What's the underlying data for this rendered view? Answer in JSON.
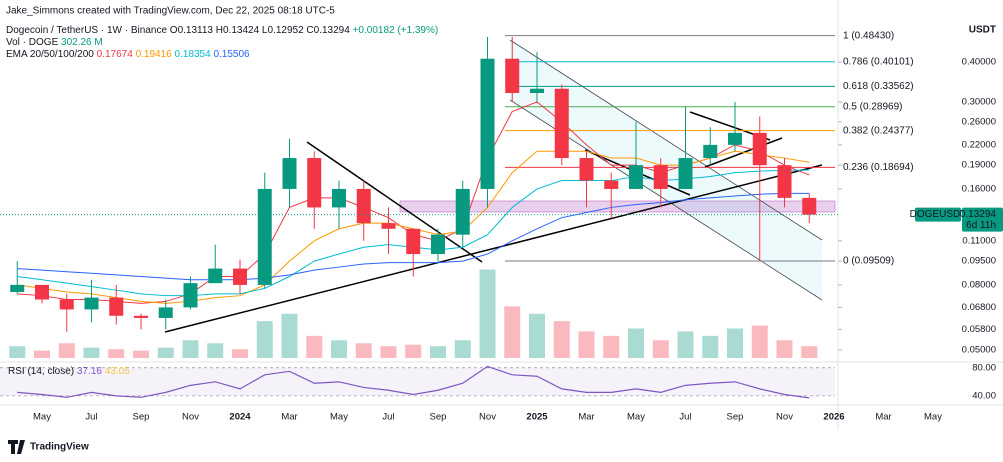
{
  "header": {
    "author": "Jake_Simmons created with TradingView.com, Dec 22, 2025 08:18 UTC-5",
    "symbol": "Dogecoin / TetherUS · 1W · Binance",
    "ohlc": [
      "O0.13113",
      "H0.13424",
      "L0.12952",
      "C0.13294",
      "+0.00182 (+1.39%)"
    ],
    "vol_label": "Vol · DOGE",
    "vol_value": "302.26 M",
    "ema_label": "EMA 20/50/100/200",
    "ema_values": [
      "0.17674",
      "0.19416",
      "0.18354",
      "0.15506"
    ],
    "currency": "USDT",
    "logo": "TradingView"
  },
  "chart_data": [
    {
      "type": "candlestick",
      "categories": [
        null,
        "May",
        null,
        "Jul",
        null,
        "Sep",
        null,
        "Nov",
        null,
        "2024",
        null,
        "Mar",
        null,
        "May",
        null,
        "Jul",
        null,
        "Sep",
        null,
        "Nov",
        null,
        "2025",
        null,
        "Mar",
        null,
        "May",
        null,
        "Jul",
        null,
        "Sep",
        null,
        "Nov",
        null,
        "2026",
        null,
        "Mar",
        null,
        "May",
        null
      ],
      "ohlc": [
        [
          0.076,
          0.095,
          0.075,
          0.08
        ],
        [
          0.08,
          0.08,
          0.07,
          0.072
        ],
        [
          0.072,
          0.075,
          0.057,
          0.067
        ],
        [
          0.067,
          0.083,
          0.061,
          0.073
        ],
        [
          0.073,
          0.08,
          0.06,
          0.064
        ],
        [
          0.064,
          0.065,
          0.058,
          0.063
        ],
        [
          0.063,
          0.072,
          0.058,
          0.068
        ],
        [
          0.068,
          0.085,
          0.067,
          0.081
        ],
        [
          0.081,
          0.107,
          0.083,
          0.09
        ],
        [
          0.09,
          0.096,
          0.075,
          0.08
        ],
        [
          0.08,
          0.18,
          0.078,
          0.16
        ],
        [
          0.16,
          0.23,
          0.14,
          0.2
        ],
        [
          0.2,
          0.21,
          0.12,
          0.14
        ],
        [
          0.14,
          0.17,
          0.12,
          0.16
        ],
        [
          0.16,
          0.17,
          0.11,
          0.125
        ],
        [
          0.125,
          0.14,
          0.1,
          0.12
        ],
        [
          0.12,
          0.12,
          0.085,
          0.1
        ],
        [
          0.1,
          0.12,
          0.095,
          0.115
        ],
        [
          0.115,
          0.17,
          0.105,
          0.16
        ],
        [
          0.16,
          0.48,
          0.14,
          0.41
        ],
        [
          0.41,
          0.48,
          0.3,
          0.32
        ],
        [
          0.32,
          0.43,
          0.3,
          0.33
        ],
        [
          0.33,
          0.34,
          0.19,
          0.2
        ],
        [
          0.2,
          0.21,
          0.14,
          0.17
        ],
        [
          0.17,
          0.18,
          0.13,
          0.16
        ],
        [
          0.16,
          0.26,
          0.16,
          0.19
        ],
        [
          0.19,
          0.2,
          0.14,
          0.16
        ],
        [
          0.16,
          0.29,
          0.16,
          0.2
        ],
        [
          0.2,
          0.25,
          0.19,
          0.22
        ],
        [
          0.22,
          0.3,
          0.21,
          0.24
        ],
        [
          0.24,
          0.27,
          0.095,
          0.19
        ],
        [
          0.19,
          0.2,
          0.14,
          0.15
        ],
        [
          0.15,
          0.155,
          0.125,
          0.13294
        ],
        null,
        null,
        null,
        null,
        null,
        null
      ],
      "up_color": "#089981",
      "down_color": "#f23645",
      "series": [
        {
          "name": "EMA 20",
          "color": "#f23645",
          "values": [
            0.075,
            0.074,
            0.072,
            0.072,
            0.071,
            0.07,
            0.071,
            0.075,
            0.085,
            0.085,
            0.1,
            0.14,
            0.15,
            0.15,
            0.14,
            0.13,
            0.115,
            0.11,
            0.12,
            0.2,
            0.28,
            0.3,
            0.26,
            0.22,
            0.19,
            0.19,
            0.18,
            0.19,
            0.2,
            0.22,
            0.21,
            0.19,
            0.177,
            null,
            null,
            null,
            null,
            null,
            null
          ]
        },
        {
          "name": "EMA 50",
          "color": "#ff9800",
          "values": [
            0.08,
            0.078,
            0.076,
            0.075,
            0.073,
            0.071,
            0.07,
            0.071,
            0.073,
            0.074,
            0.08,
            0.095,
            0.11,
            0.12,
            0.125,
            0.125,
            0.12,
            0.115,
            0.118,
            0.14,
            0.18,
            0.21,
            0.21,
            0.21,
            0.2,
            0.2,
            0.19,
            0.19,
            0.2,
            0.21,
            0.205,
            0.2,
            0.194,
            null,
            null,
            null,
            null,
            null,
            null
          ]
        },
        {
          "name": "EMA 100",
          "color": "#00bcd4",
          "values": [
            0.085,
            0.083,
            0.081,
            0.079,
            0.077,
            0.075,
            0.074,
            0.074,
            0.075,
            0.075,
            0.078,
            0.085,
            0.095,
            0.1,
            0.105,
            0.107,
            0.105,
            0.103,
            0.105,
            0.115,
            0.14,
            0.16,
            0.17,
            0.17,
            0.17,
            0.175,
            0.17,
            0.172,
            0.175,
            0.18,
            0.182,
            0.183,
            0.1835,
            null,
            null,
            null,
            null,
            null,
            null
          ]
        },
        {
          "name": "EMA 200",
          "color": "#2962ff",
          "values": [
            0.09,
            0.089,
            0.088,
            0.087,
            0.086,
            0.085,
            0.084,
            0.083,
            0.083,
            0.083,
            0.084,
            0.086,
            0.089,
            0.091,
            0.093,
            0.094,
            0.094,
            0.094,
            0.095,
            0.1,
            0.11,
            0.12,
            0.13,
            0.135,
            0.14,
            0.143,
            0.145,
            0.148,
            0.15,
            0.152,
            0.154,
            0.155,
            0.155,
            null,
            null,
            null,
            null,
            null,
            null
          ]
        }
      ],
      "log": true,
      "ylim": [
        0.0465,
        0.523
      ],
      "yticks": [
        {
          "value": 0.4,
          "label": "0.40000"
        },
        {
          "value": 0.3,
          "label": "0.30000"
        },
        {
          "value": 0.26,
          "label": "0.26000"
        },
        {
          "value": 0.22,
          "label": "0.22000"
        },
        {
          "value": 0.19,
          "label": "0.19000"
        },
        {
          "value": 0.16,
          "label": "0.16000"
        },
        {
          "value": 0.11,
          "label": "0.11000"
        },
        {
          "value": 0.095,
          "label": "0.09500"
        },
        {
          "value": 0.08,
          "label": "0.08000"
        },
        {
          "value": 0.068,
          "label": "0.06800"
        },
        {
          "value": 0.058,
          "label": "0.05800"
        },
        {
          "value": 0.05,
          "label": "0.05000"
        }
      ],
      "fib": [
        {
          "value": 0.4843,
          "label": "1 (0.48430)",
          "color": "#787b86"
        },
        {
          "value": 0.40101,
          "label": "0.786 (0.40101)",
          "color": "#00bcd4"
        },
        {
          "value": 0.33562,
          "label": "0.618 (0.33562)",
          "color": "#089981"
        },
        {
          "value": 0.28969,
          "label": "0.5 (0.28969)",
          "color": "#4caf50"
        },
        {
          "value": 0.24377,
          "label": "0.382 (0.24377)",
          "color": "#ff9800"
        },
        {
          "value": 0.18694,
          "label": "0.236 (0.18694)",
          "color": "#f23645"
        },
        {
          "value": 0.09509,
          "label": "0 (0.09509)",
          "color": "#787b86"
        }
      ],
      "last_price": {
        "symbol": "DOGEUSDT",
        "value": 0.13294,
        "label": "0.13294",
        "countdown": "6d 11h"
      }
    },
    {
      "type": "bar",
      "name": "Vol · DOGE",
      "values": [
        8,
        5,
        10,
        7,
        6,
        5,
        7,
        12,
        10,
        6,
        25,
        30,
        15,
        12,
        10,
        8,
        9,
        8,
        12,
        60,
        35,
        30,
        25,
        18,
        15,
        20,
        12,
        18,
        15,
        20,
        22,
        12,
        8,
        null,
        null,
        null,
        null,
        null,
        null
      ],
      "ylim": [
        0,
        61
      ]
    },
    {
      "type": "line",
      "title": "RSI (14, close)",
      "legend_values": [
        "37.16",
        "43.05"
      ],
      "color": "#7e57c2",
      "values": [
        45,
        42,
        38,
        45,
        40,
        38,
        45,
        55,
        60,
        50,
        70,
        75,
        58,
        60,
        52,
        48,
        42,
        48,
        58,
        82,
        70,
        68,
        50,
        45,
        45,
        50,
        45,
        55,
        58,
        60,
        50,
        42,
        37.16,
        null,
        null,
        null,
        null,
        null,
        null
      ],
      "ylim": [
        27,
        84
      ],
      "yticks": [
        {
          "value": 80,
          "label": "80.00"
        },
        {
          "value": 40,
          "label": "40.00"
        }
      ]
    }
  ]
}
